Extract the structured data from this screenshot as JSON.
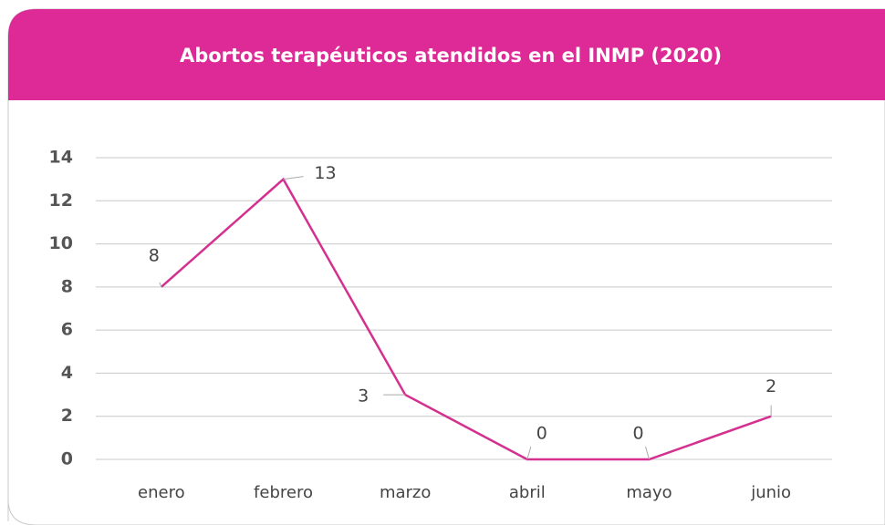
{
  "chart_data": {
    "type": "line",
    "title": "Abortos terapéuticos atendidos en el INMP (2020)",
    "categories": [
      "enero",
      "febrero",
      "marzo",
      "abril",
      "mayo",
      "junio"
    ],
    "series": [
      {
        "name": "Abortos terapéuticos",
        "color": "#d4308f",
        "values": [
          8,
          13,
          3,
          0,
          0,
          2
        ]
      }
    ],
    "ylim": [
      0,
      14
    ],
    "yticks": [
      0,
      2,
      4,
      6,
      8,
      10,
      12,
      14
    ],
    "grid": true,
    "header_color": "#dd2a96"
  }
}
